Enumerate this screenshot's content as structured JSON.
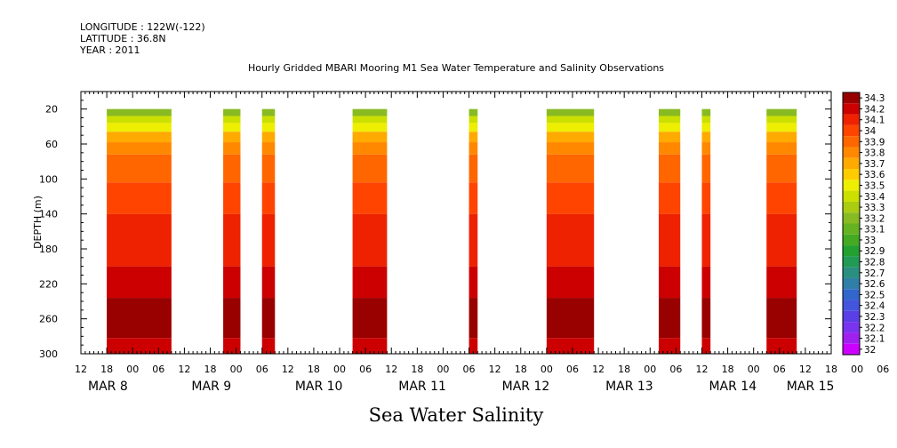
{
  "header": {
    "longitude": "LONGITUDE : 122W(-122)",
    "latitude": "LATITUDE : 36.8N",
    "year": "YEAR : 2011"
  },
  "chart_data": {
    "type": "heatmap",
    "title": "Hourly Gridded MBARI Mooring M1 Sea Water Temperature and Salinity Observations",
    "subtitle": "Sea Water Salinity",
    "xlabel": "",
    "ylabel": "DEPTH (m)",
    "x_unit": "hours since 2011-03-07 12:00",
    "xlim": [
      0,
      174
    ],
    "ylim": [
      300,
      0
    ],
    "y_ticks": [
      20,
      60,
      100,
      140,
      180,
      220,
      260,
      300
    ],
    "hour_tick_labels": [
      "12",
      "18",
      "00",
      "06",
      "12",
      "18",
      "00",
      "06",
      "12",
      "18",
      "00",
      "06",
      "12",
      "18",
      "00",
      "06",
      "12",
      "18",
      "00",
      "06",
      "12",
      "18",
      "00",
      "06",
      "12",
      "18",
      "00",
      "06",
      "12",
      "18",
      "00",
      "06"
    ],
    "date_labels": [
      "MAR  8",
      "MAR  9",
      "MAR 10",
      "MAR 11",
      "MAR 12",
      "MAR 13",
      "MAR 14",
      "MAR 15"
    ],
    "date_label_hours": [
      0,
      24,
      48,
      72,
      96,
      120,
      144,
      162
    ],
    "colorbar": {
      "levels": [
        32,
        32.1,
        32.2,
        32.3,
        32.4,
        32.5,
        32.6,
        32.7,
        32.8,
        32.9,
        33,
        33.1,
        33.2,
        33.3,
        33.4,
        33.5,
        33.6,
        33.7,
        33.8,
        33.9,
        34,
        34.1,
        34.2,
        34.3
      ],
      "labels": [
        "32",
        "32.1",
        "32.2",
        "32.3",
        "32.4",
        "32.5",
        "32.6",
        "32.7",
        "32.8",
        "32.9",
        "33",
        "33.1",
        "33.2",
        "33.3",
        "33.4",
        "33.5",
        "33.6",
        "33.7",
        "33.8",
        "33.9",
        "34",
        "34.1",
        "34.2",
        "34.3"
      ],
      "colors": [
        "#cc00ff",
        "#a020f0",
        "#7a33ee",
        "#5a3fe6",
        "#4455dd",
        "#3366cc",
        "#2f7fa8",
        "#2a8f80",
        "#219a55",
        "#22a030",
        "#44aa22",
        "#66b322",
        "#88bb22",
        "#aacc11",
        "#cce000",
        "#eeee00",
        "#ffcc00",
        "#ffaa00",
        "#ff8800",
        "#ff6600",
        "#ff4400",
        "#ee2200",
        "#cc0000",
        "#990000"
      ]
    },
    "segments": [
      {
        "start": 6,
        "end": 21
      },
      {
        "start": 33,
        "end": 37
      },
      {
        "start": 42,
        "end": 45
      },
      {
        "start": 63,
        "end": 71
      },
      {
        "start": 90,
        "end": 92
      },
      {
        "start": 108,
        "end": 119
      },
      {
        "start": 134,
        "end": 139
      },
      {
        "start": 144,
        "end": 146
      },
      {
        "start": 159,
        "end": 166
      }
    ],
    "layers": [
      {
        "from": 20,
        "to": 28,
        "value": 33.2
      },
      {
        "from": 28,
        "to": 36,
        "value": 33.4
      },
      {
        "from": 36,
        "to": 46,
        "value": 33.5
      },
      {
        "from": 46,
        "to": 58,
        "value": 33.7
      },
      {
        "from": 58,
        "to": 72,
        "value": 33.8
      },
      {
        "from": 72,
        "to": 104,
        "value": 33.9
      },
      {
        "from": 104,
        "to": 140,
        "value": 34.0
      },
      {
        "from": 140,
        "to": 200,
        "value": 34.1
      },
      {
        "from": 200,
        "to": 236,
        "value": 34.2
      },
      {
        "from": 236,
        "to": 282,
        "value": 34.3
      },
      {
        "from": 282,
        "to": 300,
        "value": 34.2
      }
    ]
  }
}
